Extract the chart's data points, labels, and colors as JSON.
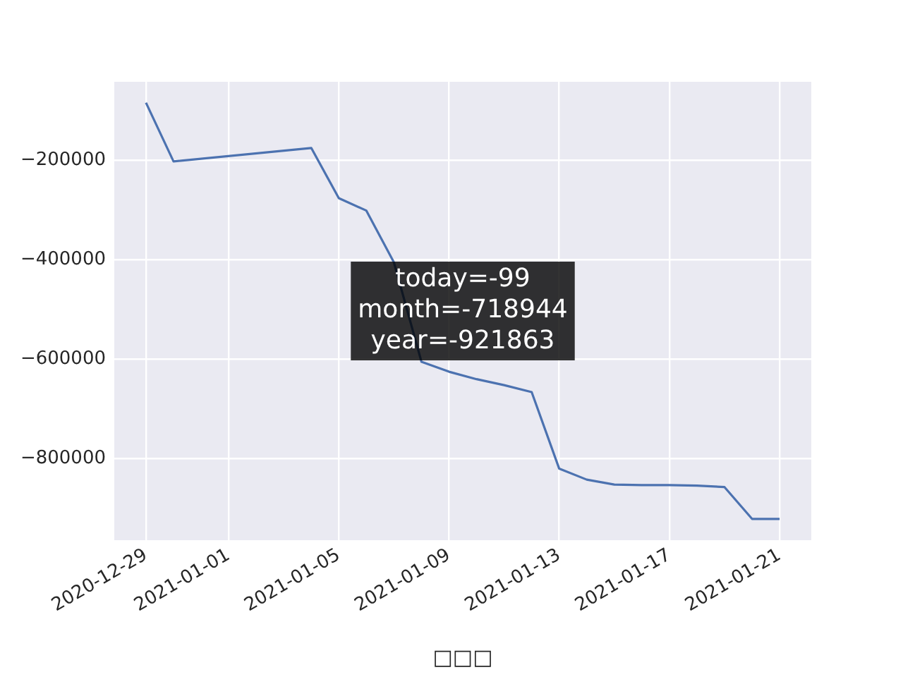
{
  "chart_data": {
    "type": "line",
    "xlabel": "□□□",
    "x": [
      "2020-12-29",
      "2020-12-30",
      "2021-01-04",
      "2021-01-05",
      "2021-01-06",
      "2021-01-07",
      "2021-01-08",
      "2021-01-09",
      "2021-01-10",
      "2021-01-11",
      "2021-01-12",
      "2021-01-13",
      "2021-01-14",
      "2021-01-15",
      "2021-01-16",
      "2021-01-17",
      "2021-01-18",
      "2021-01-19",
      "2021-01-20",
      "2021-01-21"
    ],
    "series": [
      {
        "color": "#4c72b0",
        "values": [
          -84000,
          -202000,
          -175000,
          -276000,
          -301000,
          -405000,
          -605000,
          -625000,
          -640000,
          -652000,
          -666000,
          -820000,
          -842000,
          -852000,
          -853000,
          -853000,
          -854000,
          -857000,
          -921000,
          -921000
        ]
      }
    ],
    "xlim": [
      "2020-12-27T20:24",
      "2021-01-22T03:36"
    ],
    "xticks": [
      "2020-12-29",
      "2021-01-01",
      "2021-01-05",
      "2021-01-09",
      "2021-01-13",
      "2021-01-17",
      "2021-01-21"
    ],
    "ylim": [
      -963800,
      -42000
    ],
    "yticks": [
      {
        "value": -200000,
        "label": "−200000"
      },
      {
        "value": -400000,
        "label": "−400000"
      },
      {
        "value": -600000,
        "label": "−600000"
      },
      {
        "value": -800000,
        "label": "−800000"
      }
    ],
    "grid": true,
    "annotations": [
      "today=-99\nmonth=-718944\nyear=-921863"
    ]
  }
}
